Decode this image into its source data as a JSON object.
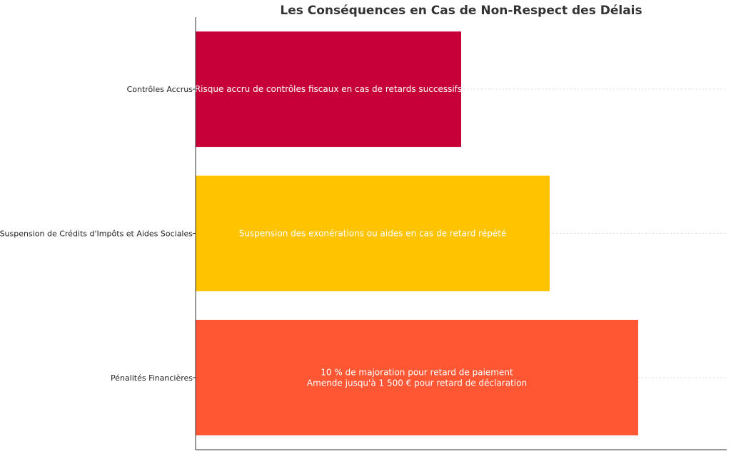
{
  "chart_data": {
    "type": "bar",
    "orientation": "horizontal",
    "title": "Les Conséquences en Cas de Non-Respect des Délais",
    "xlabel": "",
    "ylabel": "",
    "xlim": [
      0,
      3.0
    ],
    "grid": "x-hidden, horizontal dotted lines",
    "categories": [
      "Pénalités Financières",
      "Suspension de Crédits d'Impôts et Aides Sociales",
      "Contrôles Accrus"
    ],
    "values": [
      2.5,
      2.0,
      1.5
    ],
    "colors": [
      "#FF5733",
      "#FFC300",
      "#C70039"
    ],
    "annotations": [
      [
        "10 % de majoration pour retard de paiement",
        "Amende jusqu'à 1 500 € pour retard de déclaration"
      ],
      [
        "Suspension des exonérations ou aides en cas de retard répété"
      ],
      [
        "Risque accru de contrôles fiscaux en cas de retards successifs"
      ]
    ]
  }
}
